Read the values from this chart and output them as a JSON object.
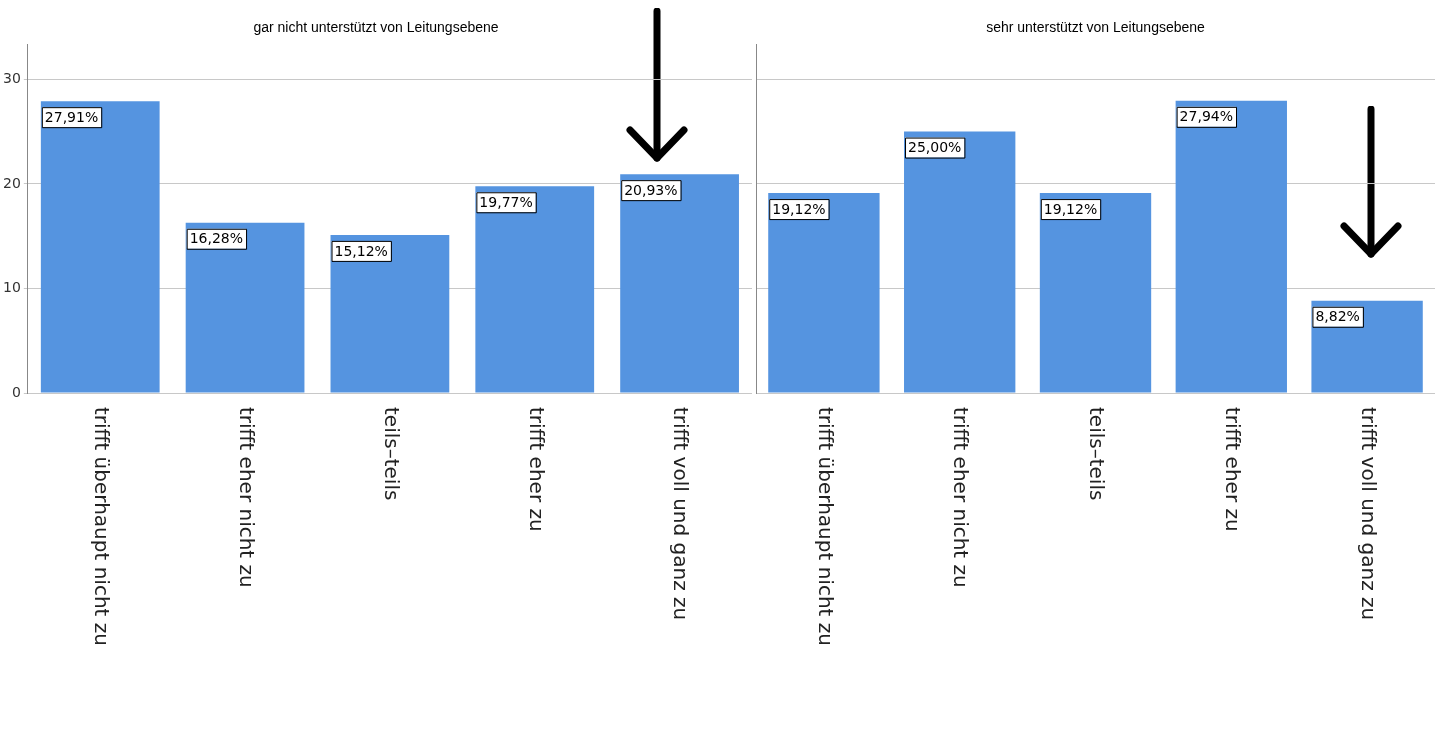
{
  "chart_data": [
    {
      "type": "bar",
      "title": "gar nicht unterstützt von Leitungsebene",
      "categories": [
        "trifft überhaupt nicht zu",
        "trifft eher nicht zu",
        "teils–teils",
        "trifft eher zu",
        "trifft voll und ganz zu"
      ],
      "values": [
        27.91,
        16.28,
        15.12,
        19.77,
        20.93
      ],
      "value_labels": [
        "27,91%",
        "16,28%",
        "15,12%",
        "19,77%",
        "20,93%"
      ],
      "color": "#5594e0",
      "ylim": [
        0,
        33.3
      ],
      "yticks": [
        0,
        10,
        20,
        30
      ],
      "grid": "y"
    },
    {
      "type": "bar",
      "title": "sehr unterstützt von Leitungsebene",
      "categories": [
        "trifft überhaupt nicht zu",
        "trifft eher nicht zu",
        "teils–teils",
        "trifft eher zu",
        "trifft voll und ganz zu"
      ],
      "values": [
        19.12,
        25.0,
        19.12,
        27.94,
        8.82
      ],
      "value_labels": [
        "19,12%",
        "25,00%",
        "19,12%",
        "27,94%",
        "8,82%"
      ],
      "color": "#5594e0",
      "ylim": [
        0,
        33.3
      ],
      "yticks": [
        0,
        10,
        20,
        30
      ],
      "grid": "y",
      "tick_labels": "x"
    }
  ]
}
